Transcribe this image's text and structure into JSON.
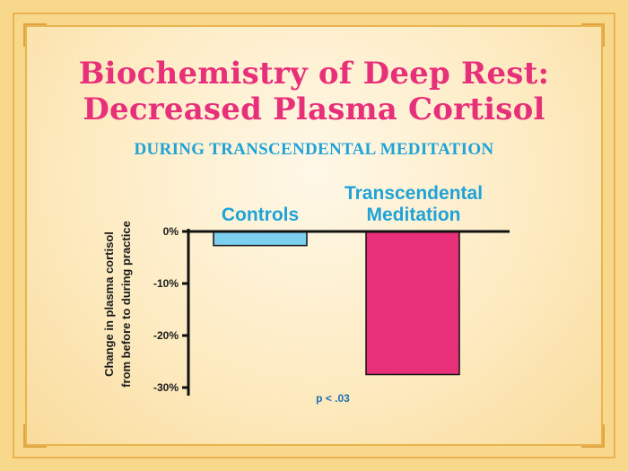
{
  "title_line1": "Biochemistry of Deep Rest:",
  "title_line2": "Decreased Plasma Cortisol",
  "subtitle": "DURING TRANSCENDENTAL MEDITATION",
  "colors": {
    "title": "#e8307a",
    "subtitle": "#1fa3d8",
    "controls_bar": "#7ccfef",
    "tm_bar": "#e8307a",
    "note": "#1f6fb0"
  },
  "chart_data": {
    "type": "bar",
    "categories": [
      "Controls",
      "Transcendental Meditation"
    ],
    "category_label_lines": [
      [
        "Controls"
      ],
      [
        "Transcendental",
        "Meditation"
      ]
    ],
    "values": [
      -2.7,
      -27.5
    ],
    "unit": "%",
    "ylim": [
      -30,
      0
    ],
    "yticks": [
      0,
      -10,
      -20,
      -30
    ],
    "ytick_labels": [
      "0%",
      "-10%",
      "-20%",
      "-30%"
    ],
    "ylabel_lines": [
      "Change in plasma cortisol",
      "from before to during practice"
    ],
    "annotation": "p < .03",
    "grid": false
  }
}
